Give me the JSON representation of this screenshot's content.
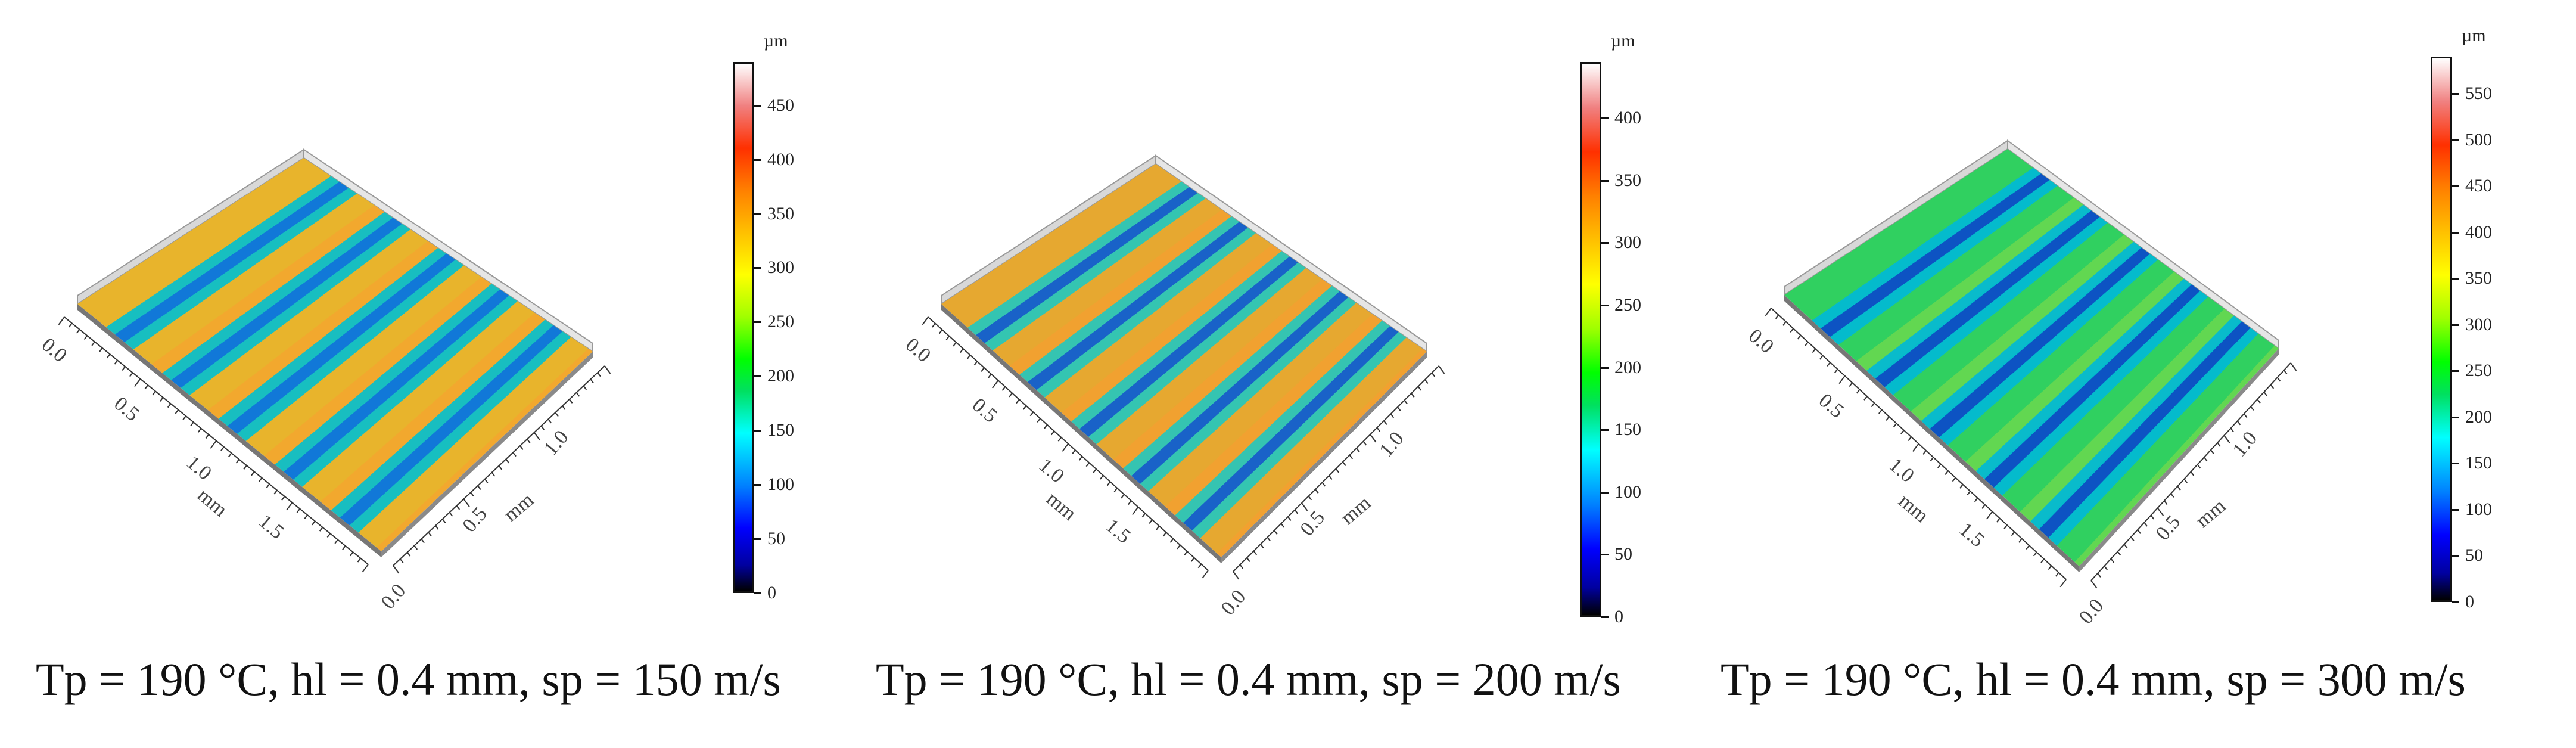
{
  "panels": [
    {
      "caption": "Tp = 190 °C, hl = 0.4 mm, sp = 150 m/s",
      "colorbar": {
        "unit": "µm",
        "ticks": [
          "450",
          "400",
          "350",
          "300",
          "250",
          "200",
          "150",
          "100",
          "50",
          "0"
        ],
        "max": 490
      },
      "x_axis": {
        "unit": "mm",
        "ticks": [
          "0.0",
          "0.5",
          "1.0",
          "1.5"
        ]
      },
      "y_axis": {
        "unit": "mm",
        "ticks": [
          "0.0",
          "0.5",
          "1.0"
        ]
      },
      "surface": {
        "base_color": "#e8b42c",
        "groove_color": "#00c0d0",
        "deep_color": "#1060e0",
        "grooves": 5
      }
    },
    {
      "caption": "Tp = 190 °C, hl = 0.4 mm, sp = 200 m/s",
      "colorbar": {
        "unit": "µm",
        "ticks": [
          "400",
          "350",
          "300",
          "250",
          "200",
          "150",
          "100",
          "50",
          "0"
        ],
        "max": 445
      },
      "x_axis": {
        "unit": "mm",
        "ticks": [
          "0.0",
          "0.5",
          "1.0",
          "1.5"
        ]
      },
      "y_axis": {
        "unit": "mm",
        "ticks": [
          "0.0",
          "0.5",
          "1.0"
        ]
      },
      "surface": {
        "base_color": "#e6a830",
        "groove_color": "#20c8c0",
        "deep_color": "#1040d0",
        "grooves": 5
      }
    },
    {
      "caption": "Tp = 190 °C, hl = 0.4 mm, sp = 300 m/s",
      "colorbar": {
        "unit": "µm",
        "ticks": [
          "550",
          "500",
          "450",
          "400",
          "350",
          "300",
          "250",
          "200",
          "150",
          "100",
          "50",
          "0"
        ],
        "max": 590
      },
      "x_axis": {
        "unit": "mm",
        "ticks": [
          "0.0",
          "0.5",
          "1.0",
          "1.5"
        ]
      },
      "y_axis": {
        "unit": "mm",
        "ticks": [
          "0.0",
          "0.5",
          "1.0"
        ]
      },
      "surface": {
        "base_color": "#30d060",
        "groove_color": "#00b8d8",
        "deep_color": "#1030c0",
        "grooves": 5
      }
    }
  ]
}
